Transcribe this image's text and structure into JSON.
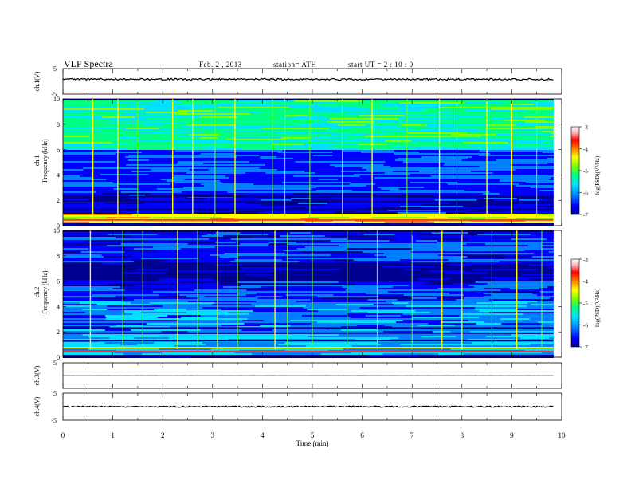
{
  "header": {
    "title": "VLF  Spectra",
    "date": "Feb. 2  , 2013",
    "station": "station= ATH",
    "start": "start  UT  =   2  : 10 : 0"
  },
  "chart_data": [
    {
      "type": "line",
      "panel": "ch1-waveform",
      "ylabel": "ch.1(V)",
      "ylim": [
        -5,
        5
      ],
      "y_ticks": [
        "5",
        "-5"
      ],
      "series_level": 0.8,
      "noise_amplitude": 0.35
    },
    {
      "type": "heatmap",
      "panel": "ch1-spectrogram",
      "ylabel_top": "ch.1",
      "ylabel": "Frequency  (kHz)",
      "ylim": [
        0,
        10
      ],
      "y_ticks": [
        "0",
        "2",
        "4",
        "6",
        "8",
        "10"
      ],
      "colorbar_label": "log(PSD)(V²/Hz)",
      "colorbar_range": [
        -7,
        -3
      ],
      "colorbar_ticks": [
        "-3",
        "-4",
        "-5",
        "-6",
        "-7"
      ],
      "bands": [
        {
          "from": 6.0,
          "to": 10.0,
          "level": -5.3
        },
        {
          "from": 2.6,
          "to": 6.0,
          "level": -6.2
        },
        {
          "from": 1.0,
          "to": 2.6,
          "level": -6.5
        },
        {
          "from": 0.3,
          "to": 1.0,
          "level": -4.4
        }
      ],
      "sferic_times_min": [
        0.6,
        1.1,
        1.5,
        2.2,
        2.6,
        3.05,
        3.45,
        4.2,
        4.45,
        4.95,
        5.6,
        6.2,
        6.9,
        7.55,
        7.9,
        8.5,
        9.0,
        9.5
      ]
    },
    {
      "type": "heatmap",
      "panel": "ch2-spectrogram",
      "ylabel_top": "ch.2",
      "ylabel": "Frequency  (kHz)",
      "ylim": [
        0,
        10
      ],
      "y_ticks": [
        "0",
        "2",
        "4",
        "6",
        "8",
        "10"
      ],
      "colorbar_label": "log(PSD)(V²/Hz)",
      "colorbar_range": [
        -7,
        -3
      ],
      "colorbar_ticks": [
        "-3",
        "-4",
        "-5",
        "-6",
        "-7"
      ],
      "bands": [
        {
          "from": 7.5,
          "to": 10.0,
          "level": -6.3
        },
        {
          "from": 6.0,
          "to": 7.5,
          "level": -6.8
        },
        {
          "from": 4.5,
          "to": 6.0,
          "level": -6.3
        },
        {
          "from": 2.0,
          "to": 4.5,
          "level": -6.0
        },
        {
          "from": 0.3,
          "to": 2.0,
          "level": -5.8
        }
      ],
      "sferic_times_min": [
        0.55,
        1.2,
        1.6,
        2.3,
        2.7,
        3.1,
        3.5,
        4.25,
        4.5,
        5.0,
        5.7,
        6.3,
        7.0,
        7.6,
        8.0,
        8.6,
        9.1,
        9.6
      ]
    },
    {
      "type": "line",
      "panel": "ch3-waveform",
      "ylabel": "ch.3(V)",
      "ylim": [
        -5,
        5
      ],
      "y_ticks": [
        "5"
      ],
      "series_level": 0.0,
      "noise_amplitude": 0.02
    },
    {
      "type": "line",
      "panel": "ch4-waveform",
      "ylabel": "ch.4(V)",
      "ylim": [
        -5,
        5
      ],
      "y_ticks": [
        "5",
        "-5"
      ],
      "series_level": 0.0,
      "noise_amplitude": 0.25
    }
  ],
  "time_axis": {
    "xlabel": "Time  (min)",
    "xlim": [
      0,
      10
    ],
    "data_end": 9.83,
    "ticks": [
      "0",
      "1",
      "2",
      "3",
      "4",
      "5",
      "6",
      "7",
      "8",
      "9",
      "10"
    ]
  },
  "colors": {
    "colormap": [
      "#000090",
      "#0000ff",
      "#0080ff",
      "#00e0ff",
      "#00ff80",
      "#80ff00",
      "#ffff00",
      "#ff8000",
      "#ff0000",
      "#ffb0b0",
      "#ffffff"
    ]
  }
}
